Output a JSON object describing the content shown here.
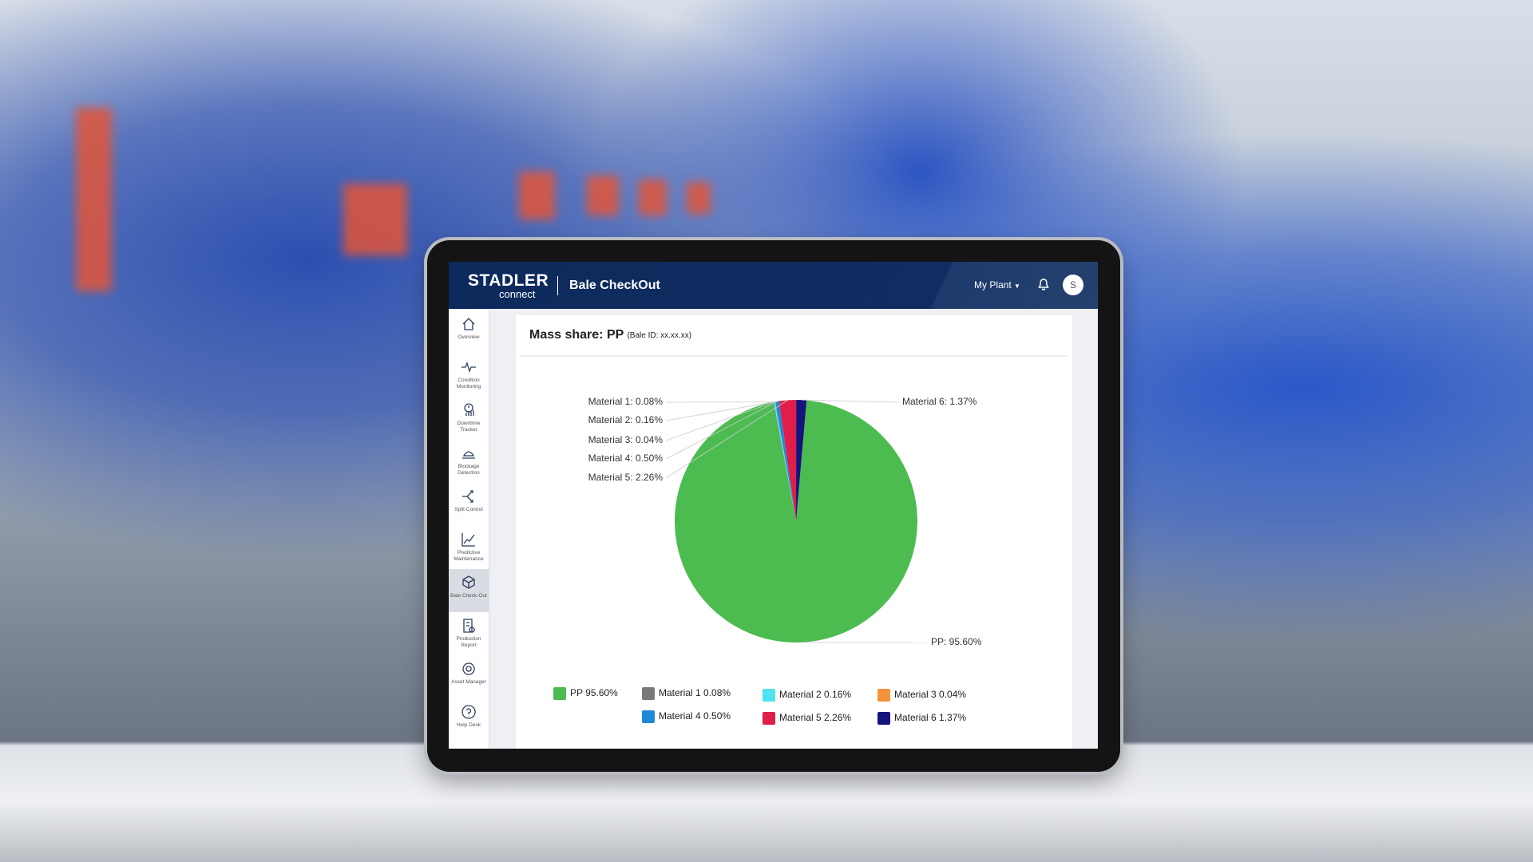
{
  "header": {
    "brand": "STADLER",
    "brand_sub": "connect",
    "title": "Bale CheckOut",
    "plant": "My Plant",
    "avatar": "S"
  },
  "sidebar": {
    "items": [
      "Overview",
      "Condition Monitoring",
      "Downtime Tracker",
      "Blockage Detection",
      "Split Control",
      "Predictive Maintenance",
      "Bale Check-Out",
      "Production Report",
      "Asset Manager",
      "Help Desk"
    ]
  },
  "chart_data": {
    "type": "pie",
    "title": "Mass share:",
    "material": "PP",
    "subtitle": "(Bale ID: xx.xx.xx)",
    "categories": [
      "PP",
      "Material 1",
      "Material 2",
      "Material 3",
      "Material 4",
      "Material 5",
      "Material 6"
    ],
    "values": [
      95.6,
      0.08,
      0.16,
      0.04,
      0.5,
      2.26,
      1.37
    ],
    "value_labels": [
      "95.60%",
      "0.08%",
      "0.16%",
      "0.04%",
      "0.50%",
      "2.26%",
      "1.37%"
    ],
    "data_labels": [
      "PP: 95.60%",
      "Material 1: 0.08%",
      "Material 2: 0.16%",
      "Material 3: 0.04%",
      "Material 4: 0.50%",
      "Material 5: 2.26%",
      "Material 6: 1.37%"
    ],
    "colors": [
      "#4cbb50",
      "#7a7a7a",
      "#4fe3f0",
      "#f5933a",
      "#1d8ad8",
      "#e11d4a",
      "#15137c"
    ]
  }
}
